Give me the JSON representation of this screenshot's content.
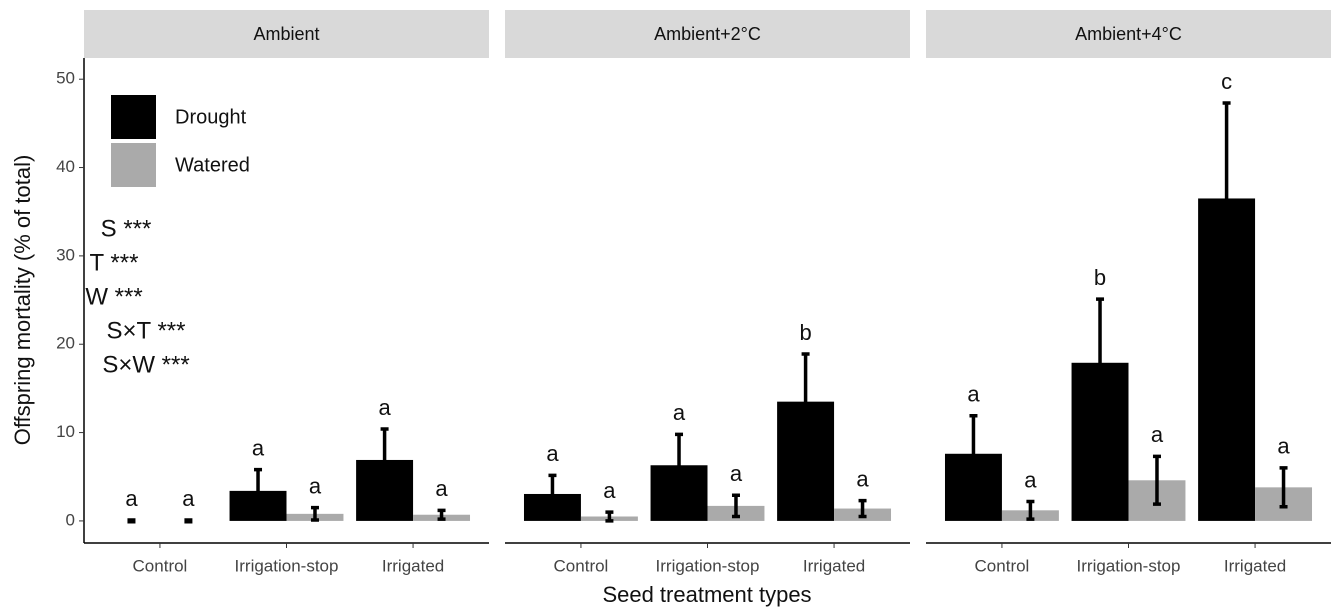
{
  "chart_data": {
    "type": "bar",
    "y_label": "Offspring mortality (% of total)",
    "x_label": "Seed treatment types",
    "ylim": [
      -2.5,
      52.4
    ],
    "yticks": [
      0,
      10,
      20,
      30,
      40,
      50
    ],
    "annotations": [
      "S ***",
      "T ***",
      "W ***",
      "S×T ***",
      "S×W ***"
    ],
    "series": [
      {
        "name": "Drought",
        "color": "#000000"
      },
      {
        "name": "Watered",
        "color": "#aaaaaa"
      }
    ],
    "facets": [
      {
        "title": "Ambient",
        "categories": [
          "Control",
          "Irrigation-stop",
          "Irrigated"
        ],
        "series": [
          {
            "values": [
              0,
              3.4,
              6.9
            ],
            "errors": [
              0.1,
              2.4,
              3.5
            ],
            "letters": [
              "a",
              "a",
              "a"
            ]
          },
          {
            "values": [
              0,
              0.8,
              0.7
            ],
            "errors": [
              0.1,
              0.7,
              0.5
            ],
            "letters": [
              "a",
              "a",
              "a"
            ]
          }
        ]
      },
      {
        "title": "Ambient+2°C",
        "categories": [
          "Control",
          "Irrigation-stop",
          "Irrigated"
        ],
        "series": [
          {
            "values": [
              3.05,
              6.3,
              13.5
            ],
            "errors": [
              2.1,
              3.5,
              5.4
            ],
            "letters": [
              "a",
              "a",
              "b"
            ]
          },
          {
            "values": [
              0.5,
              1.7,
              1.4
            ],
            "errors": [
              0.5,
              1.2,
              0.9
            ],
            "letters": [
              "a",
              "a",
              "a"
            ]
          }
        ]
      },
      {
        "title": "Ambient+4°C",
        "categories": [
          "Control",
          "Irrigation-stop",
          "Irrigated"
        ],
        "series": [
          {
            "values": [
              7.6,
              17.9,
              36.5
            ],
            "errors": [
              4.3,
              7.2,
              10.8
            ],
            "letters": [
              "a",
              "b",
              "c"
            ]
          },
          {
            "values": [
              1.2,
              4.6,
              3.8
            ],
            "errors": [
              1.0,
              2.7,
              2.2
            ],
            "letters": [
              "a",
              "a",
              "a"
            ]
          }
        ]
      }
    ]
  }
}
